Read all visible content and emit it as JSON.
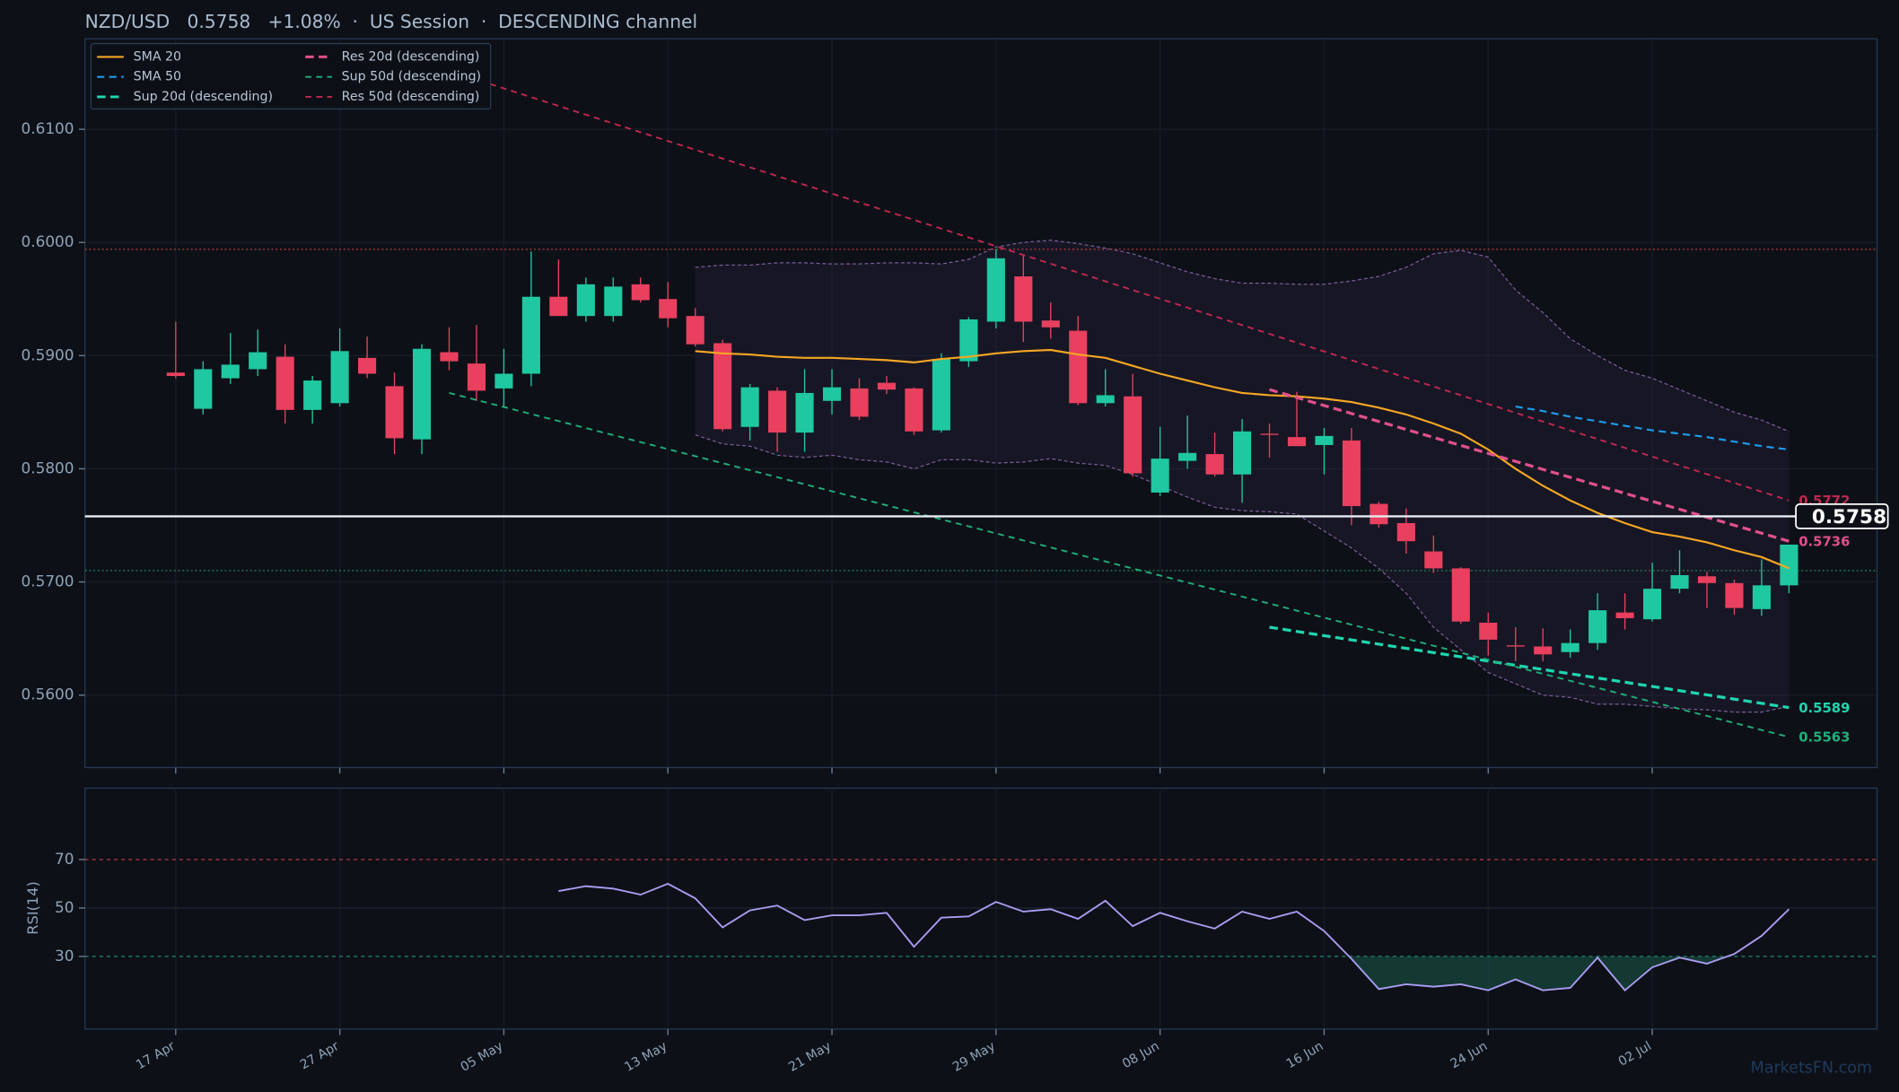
{
  "chart_data": [
    {
      "type": "candlestick",
      "title": "NZD/USD   0.5758   +1.08%  ·  US Session  ·  DESCENDING channel",
      "xlim": [
        -3.32,
        62.22
      ],
      "ylim": [
        0.5536,
        0.618
      ],
      "yticks": [
        {
          "value": 0.56,
          "label": "0.5600"
        },
        {
          "value": 0.57,
          "label": "0.5700"
        },
        {
          "value": 0.58,
          "label": "0.5800"
        },
        {
          "value": 0.59,
          "label": "0.5900"
        },
        {
          "value": 0.6,
          "label": "0.6000"
        },
        {
          "value": 0.61,
          "label": "0.6100"
        }
      ],
      "grid": true,
      "legend": "upper left",
      "up_color": "#1fc8a0",
      "down_color": "#e8405e",
      "open": [
        0.5885,
        0.5853,
        0.588,
        0.5888,
        0.5899,
        0.5852,
        0.5858,
        0.5898,
        0.5873,
        0.5826,
        0.5903,
        0.5893,
        0.5871,
        0.5884,
        0.5952,
        0.5935,
        0.5935,
        0.5963,
        0.595,
        0.5935,
        0.5911,
        0.5837,
        0.5869,
        0.5832,
        0.586,
        0.5871,
        0.5876,
        0.5871,
        0.5834,
        0.5895,
        0.593,
        0.597,
        0.5931,
        0.5922,
        0.5858,
        0.5864,
        0.5779,
        0.5807,
        0.5813,
        0.5795,
        0.5831,
        0.5828,
        0.5821,
        0.5825,
        0.5769,
        0.5752,
        0.5727,
        0.5712,
        0.5664,
        0.5644,
        0.5643,
        0.5638,
        0.5646,
        0.5673,
        0.5667,
        0.5694,
        0.5705,
        0.5699,
        0.5676,
        0.5697
      ],
      "high": [
        0.593,
        0.5895,
        0.592,
        0.5923,
        0.591,
        0.5882,
        0.5924,
        0.5917,
        0.5885,
        0.591,
        0.5925,
        0.5927,
        0.5906,
        0.5992,
        0.5985,
        0.5969,
        0.5969,
        0.5969,
        0.5965,
        0.5942,
        0.5914,
        0.5875,
        0.5872,
        0.5888,
        0.5888,
        0.588,
        0.5882,
        0.5872,
        0.5902,
        0.5934,
        0.5994,
        0.5988,
        0.5947,
        0.5935,
        0.5888,
        0.5884,
        0.5837,
        0.5847,
        0.5832,
        0.5844,
        0.584,
        0.5868,
        0.5836,
        0.5836,
        0.5771,
        0.5765,
        0.5741,
        0.5713,
        0.5673,
        0.566,
        0.5659,
        0.5658,
        0.569,
        0.569,
        0.5717,
        0.5728,
        0.5709,
        0.5702,
        0.572,
        0.5733
      ],
      "low": [
        0.588,
        0.5848,
        0.5875,
        0.5882,
        0.584,
        0.584,
        0.5855,
        0.588,
        0.5813,
        0.5813,
        0.5887,
        0.586,
        0.5855,
        0.5873,
        0.5935,
        0.593,
        0.593,
        0.5947,
        0.5925,
        0.5908,
        0.5833,
        0.5825,
        0.5815,
        0.5815,
        0.5848,
        0.5843,
        0.5866,
        0.583,
        0.5832,
        0.589,
        0.5924,
        0.5912,
        0.5915,
        0.5856,
        0.5855,
        0.5793,
        0.5776,
        0.58,
        0.5793,
        0.577,
        0.581,
        0.582,
        0.5795,
        0.575,
        0.5748,
        0.5725,
        0.5708,
        0.5663,
        0.5635,
        0.563,
        0.563,
        0.5633,
        0.564,
        0.5658,
        0.5665,
        0.569,
        0.5677,
        0.5671,
        0.567,
        0.569
      ],
      "close": [
        0.5882,
        0.5888,
        0.5892,
        0.5903,
        0.5852,
        0.5878,
        0.5904,
        0.5884,
        0.5827,
        0.5906,
        0.5895,
        0.5869,
        0.5884,
        0.5952,
        0.5935,
        0.5963,
        0.5961,
        0.5949,
        0.5933,
        0.591,
        0.5835,
        0.5872,
        0.5832,
        0.5867,
        0.5872,
        0.5846,
        0.587,
        0.5833,
        0.5897,
        0.5932,
        0.5986,
        0.593,
        0.5925,
        0.5858,
        0.5865,
        0.5796,
        0.5809,
        0.5814,
        0.5795,
        0.5833,
        0.583,
        0.582,
        0.5829,
        0.5767,
        0.5751,
        0.5736,
        0.5712,
        0.5665,
        0.5649,
        0.5643,
        0.5636,
        0.5646,
        0.5675,
        0.5668,
        0.5694,
        0.5706,
        0.5699,
        0.5677,
        0.5697,
        0.5733
      ],
      "band": {
        "color": "#7a5c9a",
        "upper": [
          null,
          null,
          null,
          null,
          null,
          null,
          null,
          null,
          null,
          null,
          null,
          null,
          null,
          null,
          null,
          null,
          null,
          null,
          null,
          0.5978,
          0.598,
          0.598,
          0.5982,
          0.5982,
          0.5981,
          0.5981,
          0.5982,
          0.5982,
          0.5981,
          0.5985,
          0.5996,
          0.6,
          0.6002,
          0.5999,
          0.5995,
          0.599,
          0.5982,
          0.5974,
          0.5968,
          0.5964,
          0.5964,
          0.5963,
          0.5963,
          0.5966,
          0.597,
          0.5978,
          0.599,
          0.5993,
          0.5987,
          0.5958,
          0.5938,
          0.5915,
          0.59,
          0.5887,
          0.588,
          0.587,
          0.586,
          0.585,
          0.5843,
          0.5833
        ],
        "lower": [
          null,
          null,
          null,
          null,
          null,
          null,
          null,
          null,
          null,
          null,
          null,
          null,
          null,
          null,
          null,
          null,
          null,
          null,
          null,
          0.583,
          0.5822,
          0.582,
          0.5812,
          0.581,
          0.5812,
          0.5808,
          0.5806,
          0.58,
          0.5808,
          0.5808,
          0.5805,
          0.5806,
          0.5809,
          0.5805,
          0.5803,
          0.5795,
          0.5785,
          0.5775,
          0.5766,
          0.5763,
          0.5762,
          0.576,
          0.5745,
          0.573,
          0.5712,
          0.569,
          0.566,
          0.564,
          0.562,
          0.561,
          0.56,
          0.5598,
          0.5592,
          0.5592,
          0.559,
          0.5588,
          0.5587,
          0.5585,
          0.5585,
          0.559
        ]
      },
      "series": [
        {
          "name": "SMA 20",
          "color": "#f5a623",
          "dash": "none",
          "width": 1.6,
          "values": [
            null,
            null,
            null,
            null,
            null,
            null,
            null,
            null,
            null,
            null,
            null,
            null,
            null,
            null,
            null,
            null,
            null,
            null,
            null,
            0.5904,
            0.5902,
            0.5901,
            0.5899,
            0.5898,
            0.5898,
            0.5897,
            0.5896,
            0.5894,
            0.5897,
            0.5899,
            0.5902,
            0.5904,
            0.5905,
            0.5901,
            0.5898,
            0.5891,
            0.5884,
            0.5878,
            0.5872,
            0.5867,
            0.5865,
            0.5864,
            0.5862,
            0.5859,
            0.5854,
            0.5848,
            0.584,
            0.5831,
            0.5817,
            0.58,
            0.5785,
            0.5772,
            0.5761,
            0.5752,
            0.5744,
            0.574,
            0.5735,
            0.5728,
            0.5722,
            0.5712
          ]
        },
        {
          "name": "SMA 50",
          "color": "#1e9be8",
          "dash": "6 4",
          "width": 1.6,
          "values": [
            null,
            null,
            null,
            null,
            null,
            null,
            null,
            null,
            null,
            null,
            null,
            null,
            null,
            null,
            null,
            null,
            null,
            null,
            null,
            null,
            null,
            null,
            null,
            null,
            null,
            null,
            null,
            null,
            null,
            null,
            null,
            null,
            null,
            null,
            null,
            null,
            null,
            null,
            null,
            null,
            null,
            null,
            null,
            null,
            null,
            null,
            null,
            null,
            null,
            0.5855,
            0.5851,
            0.5846,
            0.5842,
            0.5838,
            0.5834,
            0.5831,
            0.5828,
            0.5824,
            0.582,
            0.5817
          ]
        },
        {
          "name": "Sup 20d (descending)",
          "color": "#1fd6b0",
          "dash": "7 4",
          "width": 2.4,
          "x": [
            40,
            59
          ],
          "values": [
            0.566,
            0.5589
          ]
        },
        {
          "name": "Res 20d (descending)",
          "color": "#e0508a",
          "dash": "7 4",
          "width": 2.4,
          "x": [
            40,
            59
          ],
          "values": [
            0.587,
            0.5736
          ]
        },
        {
          "name": "Sup 50d (descending)",
          "color": "#20b07a",
          "dash": "5 4",
          "width": 1.4,
          "x": [
            10,
            59
          ],
          "values": [
            0.5867,
            0.5563
          ]
        },
        {
          "name": "Res 50d (descending)",
          "color": "#c0284f",
          "dash": "5 4",
          "width": 1.4,
          "x": [
            11.5,
            59
          ],
          "values": [
            0.614,
            0.5772
          ]
        }
      ],
      "levels": [
        {
          "value": 0.5994,
          "color": "#a83838"
        },
        {
          "value": 0.571,
          "color": "#237a4e"
        }
      ],
      "current_price": 0.5758
    },
    {
      "type": "line",
      "ylabel": "RSI(14)",
      "xlim": [
        -3.32,
        62.22
      ],
      "ylim": [
        0,
        99.5
      ],
      "yticks": [
        30,
        50,
        70
      ],
      "xticks": [
        {
          "value": 0,
          "label": "17 Apr"
        },
        {
          "value": 6,
          "label": "27 Apr"
        },
        {
          "value": 12,
          "label": "05 May"
        },
        {
          "value": 18,
          "label": "13 May"
        },
        {
          "value": 24,
          "label": "21 May"
        },
        {
          "value": 30,
          "label": "29 May"
        },
        {
          "value": 36,
          "label": "08 Jun"
        },
        {
          "value": 42,
          "label": "16 Jun"
        },
        {
          "value": 48,
          "label": "24 Jun"
        },
        {
          "value": 54,
          "label": "02 Jul"
        }
      ],
      "overbought": 70,
      "oversold": 30,
      "color": "#a99cf0",
      "values": [
        null,
        null,
        null,
        null,
        null,
        null,
        null,
        null,
        null,
        null,
        null,
        null,
        null,
        null,
        57,
        59,
        58,
        55.5,
        60,
        54,
        42,
        49,
        51,
        45,
        47,
        47,
        48,
        34,
        46,
        46.5,
        52.5,
        48.5,
        49.5,
        45.5,
        53,
        42.5,
        48,
        44.5,
        41.5,
        48.5,
        45.5,
        48.5,
        40.5,
        29,
        16.5,
        18.5,
        17.5,
        18.5,
        16,
        20.5,
        16,
        17,
        29.5,
        16,
        25.5,
        29.5,
        27,
        31,
        38.5,
        49.5
      ],
      "watermark": "MarketsFN.com"
    }
  ]
}
